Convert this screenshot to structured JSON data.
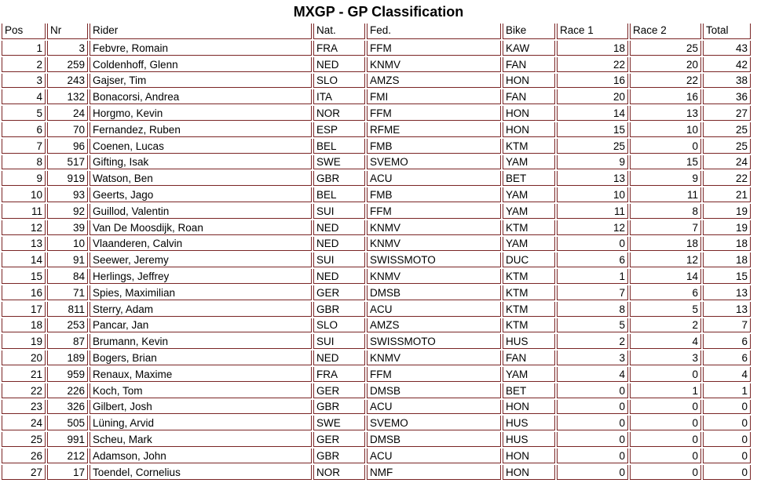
{
  "title": "MXGP - GP Classification",
  "colors": {
    "border": "#7a2525",
    "text": "#000000",
    "background": "#ffffff"
  },
  "table": {
    "columns": [
      {
        "key": "pos",
        "label": "Pos",
        "align": "right"
      },
      {
        "key": "nr",
        "label": "Nr",
        "align": "right"
      },
      {
        "key": "rider",
        "label": "Rider",
        "align": "left"
      },
      {
        "key": "nat",
        "label": "Nat.",
        "align": "left"
      },
      {
        "key": "fed",
        "label": "Fed.",
        "align": "left"
      },
      {
        "key": "bike",
        "label": "Bike",
        "align": "left"
      },
      {
        "key": "race1",
        "label": "Race 1",
        "align": "right"
      },
      {
        "key": "race2",
        "label": "Race 2",
        "align": "right"
      },
      {
        "key": "total",
        "label": "Total",
        "align": "right"
      }
    ],
    "rows": [
      [
        1,
        3,
        "Febvre, Romain",
        "FRA",
        "FFM",
        "KAW",
        18,
        25,
        43
      ],
      [
        2,
        259,
        "Coldenhoff, Glenn",
        "NED",
        "KNMV",
        "FAN",
        22,
        20,
        42
      ],
      [
        3,
        243,
        "Gajser, Tim",
        "SLO",
        "AMZS",
        "HON",
        16,
        22,
        38
      ],
      [
        4,
        132,
        "Bonacorsi, Andrea",
        "ITA",
        "FMI",
        "FAN",
        20,
        16,
        36
      ],
      [
        5,
        24,
        "Horgmo, Kevin",
        "NOR",
        "FFM",
        "HON",
        14,
        13,
        27
      ],
      [
        6,
        70,
        "Fernandez, Ruben",
        "ESP",
        "RFME",
        "HON",
        15,
        10,
        25
      ],
      [
        7,
        96,
        "Coenen, Lucas",
        "BEL",
        "FMB",
        "KTM",
        25,
        0,
        25
      ],
      [
        8,
        517,
        "Gifting, Isak",
        "SWE",
        "SVEMO",
        "YAM",
        9,
        15,
        24
      ],
      [
        9,
        919,
        "Watson, Ben",
        "GBR",
        "ACU",
        "BET",
        13,
        9,
        22
      ],
      [
        10,
        93,
        "Geerts, Jago",
        "BEL",
        "FMB",
        "YAM",
        10,
        11,
        21
      ],
      [
        11,
        92,
        "Guillod, Valentin",
        "SUI",
        "FFM",
        "YAM",
        11,
        8,
        19
      ],
      [
        12,
        39,
        "Van De Moosdijk, Roan",
        "NED",
        "KNMV",
        "KTM",
        12,
        7,
        19
      ],
      [
        13,
        10,
        "Vlaanderen, Calvin",
        "NED",
        "KNMV",
        "YAM",
        0,
        18,
        18
      ],
      [
        14,
        91,
        "Seewer, Jeremy",
        "SUI",
        "SWISSMOTO",
        "DUC",
        6,
        12,
        18
      ],
      [
        15,
        84,
        "Herlings, Jeffrey",
        "NED",
        "KNMV",
        "KTM",
        1,
        14,
        15
      ],
      [
        16,
        71,
        "Spies, Maximilian",
        "GER",
        "DMSB",
        "KTM",
        7,
        6,
        13
      ],
      [
        17,
        811,
        "Sterry, Adam",
        "GBR",
        "ACU",
        "KTM",
        8,
        5,
        13
      ],
      [
        18,
        253,
        "Pancar, Jan",
        "SLO",
        "AMZS",
        "KTM",
        5,
        2,
        7
      ],
      [
        19,
        87,
        "Brumann, Kevin",
        "SUI",
        "SWISSMOTO",
        "HUS",
        2,
        4,
        6
      ],
      [
        20,
        189,
        "Bogers, Brian",
        "NED",
        "KNMV",
        "FAN",
        3,
        3,
        6
      ],
      [
        21,
        959,
        "Renaux, Maxime",
        "FRA",
        "FFM",
        "YAM",
        4,
        0,
        4
      ],
      [
        22,
        226,
        "Koch, Tom",
        "GER",
        "DMSB",
        "BET",
        0,
        1,
        1
      ],
      [
        23,
        326,
        "Gilbert, Josh",
        "GBR",
        "ACU",
        "HON",
        0,
        0,
        0
      ],
      [
        24,
        505,
        "Lüning, Arvid",
        "SWE",
        "SVEMO",
        "HUS",
        0,
        0,
        0
      ],
      [
        25,
        991,
        "Scheu, Mark",
        "GER",
        "DMSB",
        "HUS",
        0,
        0,
        0
      ],
      [
        26,
        212,
        "Adamson, John",
        "GBR",
        "ACU",
        "HON",
        0,
        0,
        0
      ],
      [
        27,
        17,
        "Toendel, Cornelius",
        "NOR",
        "NMF",
        "HON",
        0,
        0,
        0
      ]
    ]
  }
}
